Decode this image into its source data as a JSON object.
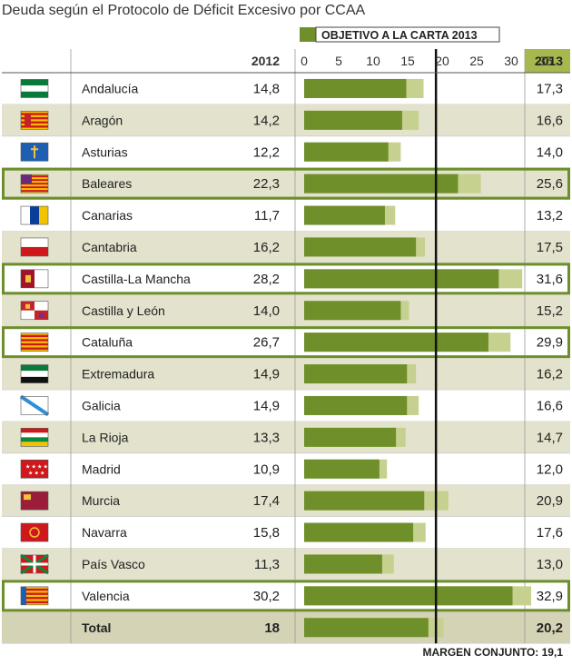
{
  "chart_data": {
    "type": "bar",
    "title": "Deuda según el Protocolo de Déficit Excesivo por CCAA",
    "legend_label": "OBJETIVO A LA CARTA 2013",
    "col_2012_label": "2012",
    "col_2013_label": "2013",
    "x_ticks": [
      "0",
      "5",
      "10",
      "15",
      "20",
      "25",
      "30",
      "35"
    ],
    "xlim": [
      0,
      36
    ],
    "reference_line": 19.1,
    "footer": "MARGEN CONJUNTO: 19,1",
    "colors": {
      "bar_2012": "#6e8f2a",
      "bar_2013": "#c6d08f",
      "band": "#e3e2cc",
      "header_2013": "#a6b84e",
      "total_band": "#d4d3b5",
      "highlight_border": "#6d8f2b"
    },
    "rows": [
      {
        "name": "Andalucía",
        "flag": "andalucia-flag",
        "v2012": 14.8,
        "v2013": 17.3,
        "label2012": "14,8",
        "label2013": "17,3",
        "highlight": false
      },
      {
        "name": "Aragón",
        "flag": "aragon-flag",
        "v2012": 14.2,
        "v2013": 16.6,
        "label2012": "14,2",
        "label2013": "16,6",
        "highlight": false
      },
      {
        "name": "Asturias",
        "flag": "asturias-flag",
        "v2012": 12.2,
        "v2013": 14.0,
        "label2012": "12,2",
        "label2013": "14,0",
        "highlight": false
      },
      {
        "name": "Baleares",
        "flag": "baleares-flag",
        "v2012": 22.3,
        "v2013": 25.6,
        "label2012": "22,3",
        "label2013": "25,6",
        "highlight": true
      },
      {
        "name": "Canarias",
        "flag": "canarias-flag",
        "v2012": 11.7,
        "v2013": 13.2,
        "label2012": "11,7",
        "label2013": "13,2",
        "highlight": false
      },
      {
        "name": "Cantabria",
        "flag": "cantabria-flag",
        "v2012": 16.2,
        "v2013": 17.5,
        "label2012": "16,2",
        "label2013": "17,5",
        "highlight": false
      },
      {
        "name": "Castilla-La Mancha",
        "flag": "castilla-la-mancha-flag",
        "v2012": 28.2,
        "v2013": 31.6,
        "label2012": "28,2",
        "label2013": "31,6",
        "highlight": true
      },
      {
        "name": "Castilla y León",
        "flag": "castilla-y-leon-flag",
        "v2012": 14.0,
        "v2013": 15.2,
        "label2012": "14,0",
        "label2013": "15,2",
        "highlight": false
      },
      {
        "name": "Cataluña",
        "flag": "cataluna-flag",
        "v2012": 26.7,
        "v2013": 29.9,
        "label2012": "26,7",
        "label2013": "29,9",
        "highlight": true
      },
      {
        "name": "Extremadura",
        "flag": "extremadura-flag",
        "v2012": 14.9,
        "v2013": 16.2,
        "label2012": "14,9",
        "label2013": "16,2",
        "highlight": false
      },
      {
        "name": "Galicia",
        "flag": "galicia-flag",
        "v2012": 14.9,
        "v2013": 16.6,
        "label2012": "14,9",
        "label2013": "16,6",
        "highlight": false
      },
      {
        "name": "La Rioja",
        "flag": "la-rioja-flag",
        "v2012": 13.3,
        "v2013": 14.7,
        "label2012": "13,3",
        "label2013": "14,7",
        "highlight": false
      },
      {
        "name": "Madrid",
        "flag": "madrid-flag",
        "v2012": 10.9,
        "v2013": 12.0,
        "label2012": "10,9",
        "label2013": "12,0",
        "highlight": false
      },
      {
        "name": "Murcia",
        "flag": "murcia-flag",
        "v2012": 17.4,
        "v2013": 20.9,
        "label2012": "17,4",
        "label2013": "20,9",
        "highlight": false
      },
      {
        "name": "Navarra",
        "flag": "navarra-flag",
        "v2012": 15.8,
        "v2013": 17.6,
        "label2012": "15,8",
        "label2013": "17,6",
        "highlight": false
      },
      {
        "name": "País Vasco",
        "flag": "pais-vasco-flag",
        "v2012": 11.3,
        "v2013": 13.0,
        "label2012": "11,3",
        "label2013": "13,0",
        "highlight": false
      },
      {
        "name": "Valencia",
        "flag": "valencia-flag",
        "v2012": 30.2,
        "v2013": 32.9,
        "label2012": "30,2",
        "label2013": "32,9",
        "highlight": true
      }
    ],
    "total": {
      "name": "Total",
      "v2012": 18,
      "v2013": 20.2,
      "label2012": "18",
      "label2013": "20,2"
    }
  }
}
